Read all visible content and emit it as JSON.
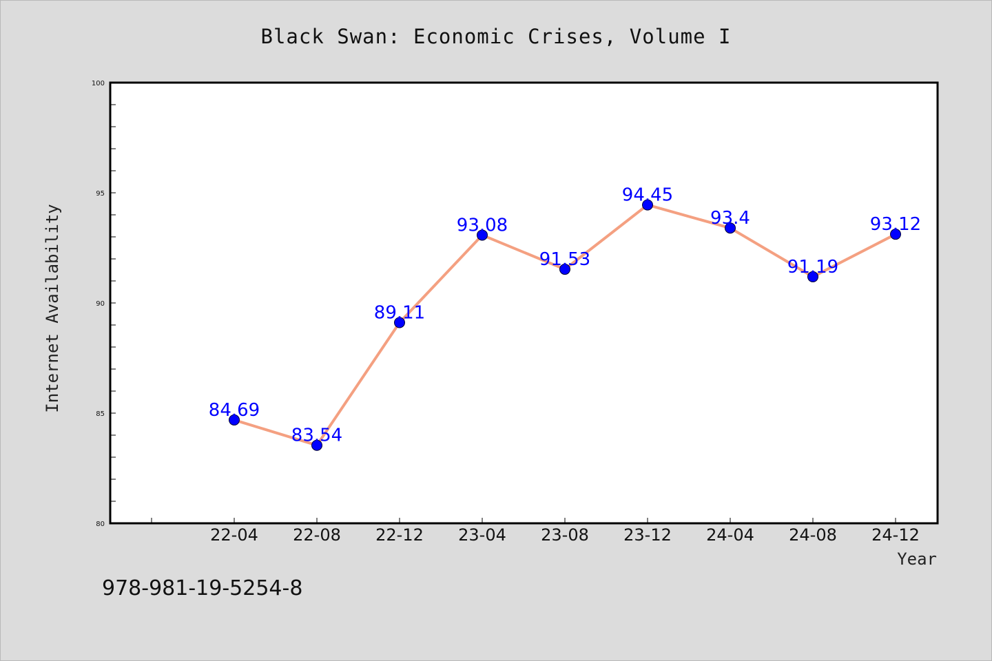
{
  "chart_data": {
    "type": "line",
    "title": "Black Swan: Economic Crises, Volume I",
    "xlabel": "Year",
    "ylabel": "Internet Availability",
    "categories": [
      "22-04",
      "22-08",
      "22-12",
      "23-04",
      "23-08",
      "23-12",
      "24-04",
      "24-08",
      "24-12"
    ],
    "series": [
      {
        "values": [
          84.69,
          83.54,
          89.11,
          93.08,
          91.53,
          94.45,
          93.4,
          91.19,
          93.12
        ]
      }
    ],
    "data_labels": [
      "84.69",
      "83.54",
      "89.11",
      "93.08",
      "91.53",
      "94.45",
      "93.4",
      "91.19",
      "93.12"
    ],
    "ylim": [
      80,
      100
    ],
    "yticks": [
      "80",
      "85",
      "90",
      "95",
      "100"
    ],
    "grid": false,
    "line_color": "#f4a081",
    "marker_color": "#0000ff",
    "label_color": "#0000ff",
    "footnote": "978-981-19-5254-8"
  }
}
